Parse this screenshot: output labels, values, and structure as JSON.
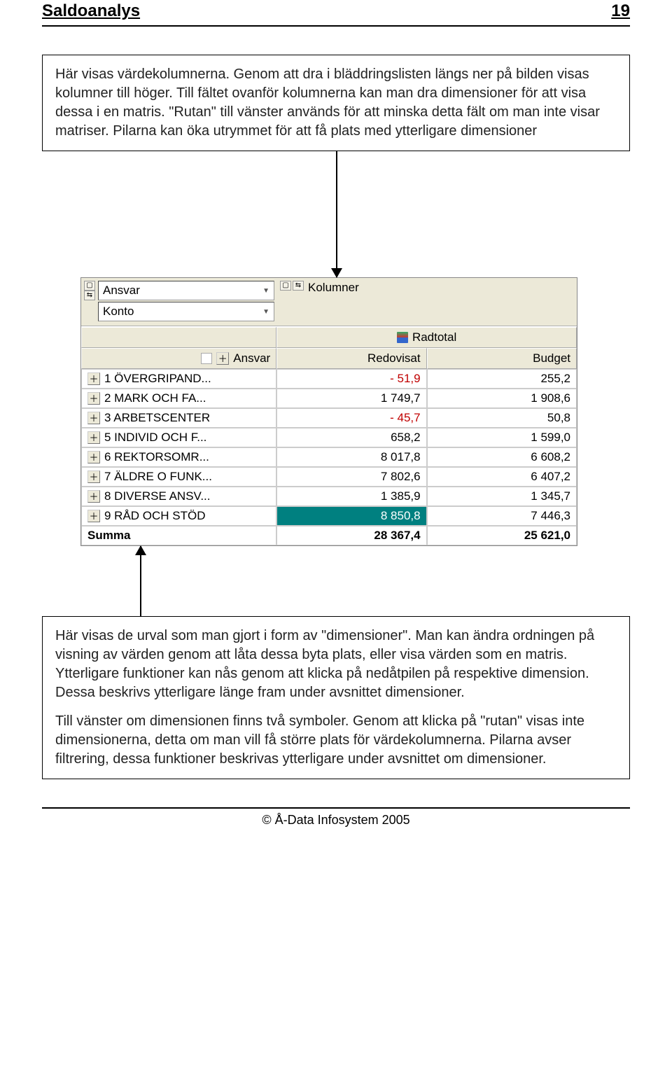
{
  "header": {
    "title": "Saldoanalys",
    "page": "19"
  },
  "callout_top": {
    "text": "Här visas värdekolumnerna. Genom att dra i bläddringslisten längs ner på bilden visas kolumner till höger. Till fältet ovanför kolumnerna kan man dra dimensioner för att visa dessa i en matris. \"Rutan\" till vänster används för att minska detta fält om man inte visar matriser. Pilarna kan öka utrymmet för att få plats med ytterligare dimensioner"
  },
  "dimensions": {
    "items": [
      "Ansvar",
      "Konto"
    ],
    "kolumner_label": "Kolumner"
  },
  "table": {
    "radtotal_label": "Radtotal",
    "rowheader_icon_label": "",
    "rowheader_label": "Ansvar",
    "columns": [
      "Redovisat",
      "Budget"
    ],
    "rows": [
      {
        "label": "1 ÖVERGRIPAND...",
        "redovisat": "- 51,9",
        "redovisat_neg": true,
        "budget": "255,2"
      },
      {
        "label": "2 MARK OCH FA...",
        "redovisat": "1 749,7",
        "redovisat_neg": false,
        "budget": "1 908,6"
      },
      {
        "label": "3 ARBETSCENTER",
        "redovisat": "- 45,7",
        "redovisat_neg": true,
        "budget": "50,8"
      },
      {
        "label": "5 INDIVID OCH F...",
        "redovisat": "658,2",
        "redovisat_neg": false,
        "budget": "1 599,0"
      },
      {
        "label": "6 REKTORSOMR...",
        "redovisat": "8 017,8",
        "redovisat_neg": false,
        "budget": "6 608,2"
      },
      {
        "label": "7 ÄLDRE O FUNK...",
        "redovisat": "7 802,6",
        "redovisat_neg": false,
        "budget": "6 407,2"
      },
      {
        "label": "8 DIVERSE ANSV...",
        "redovisat": "1 385,9",
        "redovisat_neg": false,
        "budget": "1 345,7"
      },
      {
        "label": "9 RÅD OCH STÖD",
        "redovisat": "8 850,8",
        "redovisat_neg": false,
        "budget": "7 446,3",
        "highlight": true
      }
    ],
    "sum": {
      "label": "Summa",
      "redovisat": "28 367,4",
      "budget": "25 621,0"
    }
  },
  "callout_bottom": {
    "p1": "Här visas de urval som man gjort i form av \"dimensioner\". Man kan ändra ordningen på visning av värden genom att låta dessa byta plats, eller visa värden som en matris. Ytterligare funktioner kan nås genom att klicka på nedåtpilen på respektive dimension. Dessa beskrivs ytterligare länge fram under avsnittet dimensioner.",
    "p2": "Till vänster om dimensionen finns två symboler. Genom att klicka på \"rutan\" visas inte dimensionerna, detta om man vill få större plats för värdekolumnerna. Pilarna avser filtrering, dessa funktioner beskrivas ytterligare under avsnittet om dimensioner."
  },
  "footer": {
    "text": "© Å-Data Infosystem 2005"
  },
  "colors": {
    "background": "#ffffff",
    "ui_panel": "#ece9d8",
    "border": "#aaaaaa",
    "negative": "#c00000",
    "highlight_bg": "#008080",
    "highlight_fg": "#ffffff"
  }
}
